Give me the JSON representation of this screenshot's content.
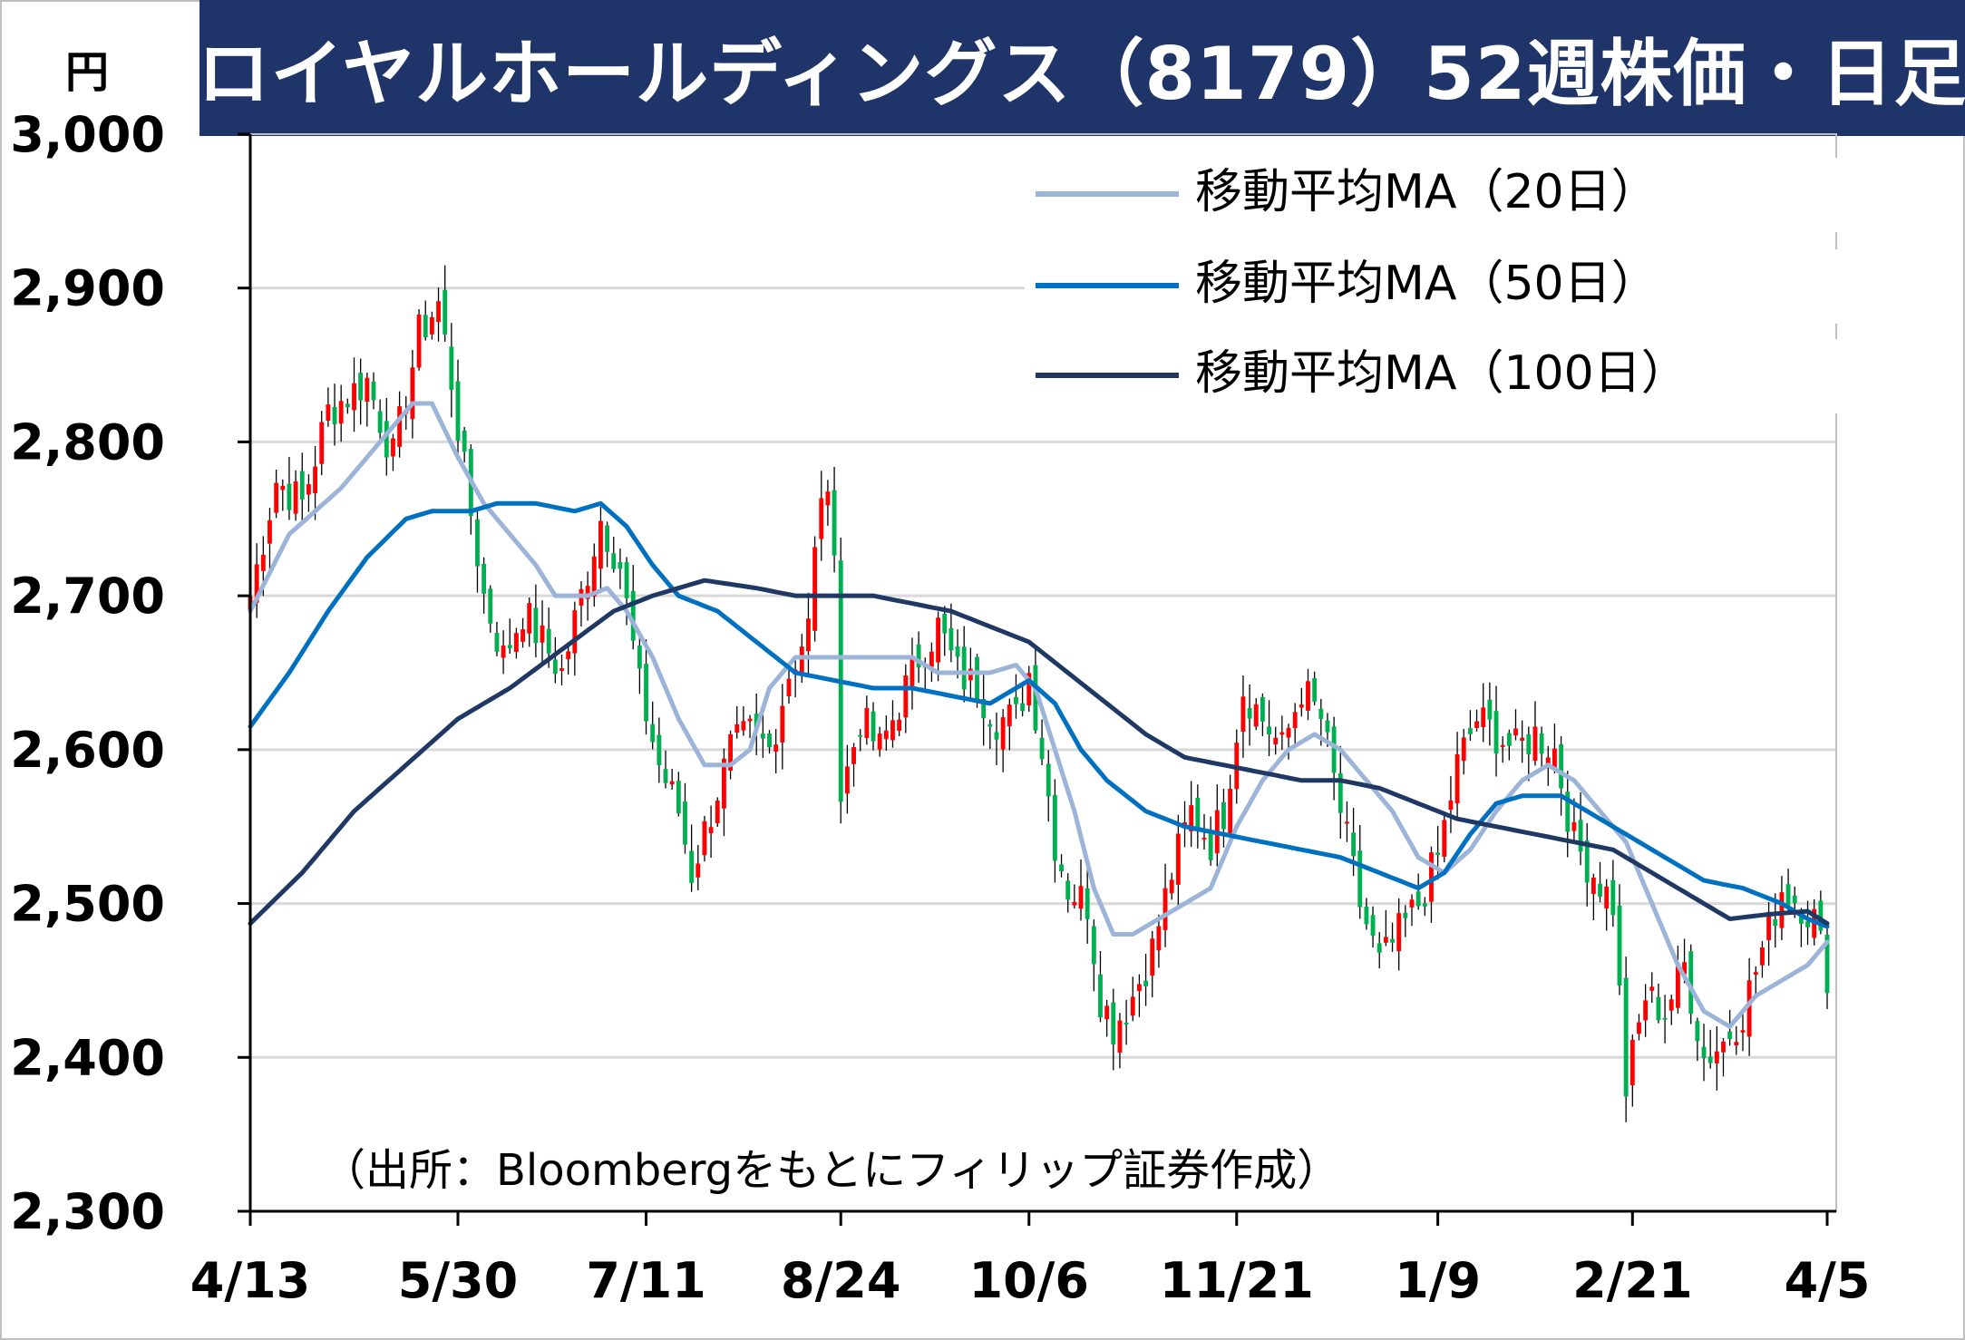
{
  "header": {
    "title": "ロイヤルホールディングス（8179）52週株価・日足",
    "unit": "円"
  },
  "source_note": "（出所：Bloombergをもとにフィリップ証券作成）",
  "colors": {
    "up": "#ff0000",
    "down": "#00b050",
    "wick": "#000000",
    "ma20": "#9cb4d8",
    "ma50": "#0070c0",
    "ma100": "#1f3864",
    "grid": "#d9d9d9",
    "title_bg": "#1f3468"
  },
  "chart_data": {
    "type": "candlestick",
    "title": "ロイヤルホールディングス（8179）52週株価・日足",
    "ylabel": "円",
    "ylim": [
      2300,
      3000
    ],
    "yticks": [
      "3,000",
      "2,900",
      "2,800",
      "2,700",
      "2,600",
      "2,500",
      "2,400",
      "2,300"
    ],
    "ytick_values": [
      3000,
      2900,
      2800,
      2700,
      2600,
      2500,
      2400,
      2300
    ],
    "xticks": [
      "4/13",
      "5/30",
      "7/11",
      "8/24",
      "10/6",
      "11/21",
      "1/9",
      "2/21",
      "4/5"
    ],
    "xtick_index": [
      0,
      32,
      61,
      91,
      120,
      152,
      183,
      213,
      243
    ],
    "n_days": 244,
    "grid": true,
    "legend_position": "top-right",
    "anchors": [
      [
        0,
        2700
      ],
      [
        4,
        2775
      ],
      [
        8,
        2760
      ],
      [
        12,
        2820
      ],
      [
        18,
        2840
      ],
      [
        22,
        2790
      ],
      [
        26,
        2870
      ],
      [
        29,
        2890
      ],
      [
        31,
        2840
      ],
      [
        33,
        2780
      ],
      [
        36,
        2700
      ],
      [
        39,
        2660
      ],
      [
        42,
        2690
      ],
      [
        45,
        2670
      ],
      [
        48,
        2650
      ],
      [
        51,
        2700
      ],
      [
        54,
        2750
      ],
      [
        57,
        2720
      ],
      [
        60,
        2640
      ],
      [
        63,
        2590
      ],
      [
        66,
        2560
      ],
      [
        68,
        2520
      ],
      [
        71,
        2560
      ],
      [
        74,
        2600
      ],
      [
        77,
        2610
      ],
      [
        80,
        2600
      ],
      [
        83,
        2650
      ],
      [
        86,
        2680
      ],
      [
        88,
        2770
      ],
      [
        90,
        2740
      ],
      [
        91,
        2570
      ],
      [
        94,
        2620
      ],
      [
        97,
        2600
      ],
      [
        100,
        2630
      ],
      [
        103,
        2660
      ],
      [
        106,
        2680
      ],
      [
        109,
        2650
      ],
      [
        112,
        2640
      ],
      [
        115,
        2620
      ],
      [
        118,
        2620
      ],
      [
        120,
        2650
      ],
      [
        122,
        2600
      ],
      [
        124,
        2540
      ],
      [
        126,
        2510
      ],
      [
        129,
        2500
      ],
      [
        131,
        2440
      ],
      [
        133,
        2420
      ],
      [
        136,
        2440
      ],
      [
        139,
        2470
      ],
      [
        142,
        2520
      ],
      [
        145,
        2560
      ],
      [
        148,
        2540
      ],
      [
        150,
        2560
      ],
      [
        153,
        2640
      ],
      [
        156,
        2620
      ],
      [
        159,
        2600
      ],
      [
        162,
        2640
      ],
      [
        165,
        2620
      ],
      [
        168,
        2560
      ],
      [
        171,
        2500
      ],
      [
        174,
        2460
      ],
      [
        177,
        2480
      ],
      [
        180,
        2500
      ],
      [
        183,
        2530
      ],
      [
        186,
        2590
      ],
      [
        189,
        2620
      ],
      [
        192,
        2610
      ],
      [
        195,
        2600
      ],
      [
        198,
        2610
      ],
      [
        201,
        2600
      ],
      [
        204,
        2540
      ],
      [
        207,
        2520
      ],
      [
        210,
        2500
      ],
      [
        212,
        2380
      ],
      [
        215,
        2440
      ],
      [
        218,
        2430
      ],
      [
        221,
        2460
      ],
      [
        224,
        2400
      ],
      [
        227,
        2410
      ],
      [
        230,
        2430
      ],
      [
        233,
        2470
      ],
      [
        236,
        2510
      ],
      [
        239,
        2500
      ],
      [
        241,
        2490
      ],
      [
        243,
        2455
      ]
    ],
    "series": [
      {
        "name": "移動平均MA（20日）",
        "values": [
          [
            0,
            2690
          ],
          [
            6,
            2740
          ],
          [
            14,
            2770
          ],
          [
            20,
            2800
          ],
          [
            25,
            2825
          ],
          [
            28,
            2825
          ],
          [
            32,
            2790
          ],
          [
            36,
            2760
          ],
          [
            40,
            2740
          ],
          [
            44,
            2720
          ],
          [
            47,
            2700
          ],
          [
            52,
            2700
          ],
          [
            55,
            2705
          ],
          [
            58,
            2690
          ],
          [
            62,
            2660
          ],
          [
            66,
            2620
          ],
          [
            70,
            2590
          ],
          [
            74,
            2590
          ],
          [
            77,
            2600
          ],
          [
            80,
            2640
          ],
          [
            84,
            2660
          ],
          [
            90,
            2660
          ],
          [
            94,
            2660
          ],
          [
            98,
            2660
          ],
          [
            102,
            2660
          ],
          [
            106,
            2650
          ],
          [
            110,
            2650
          ],
          [
            114,
            2650
          ],
          [
            118,
            2655
          ],
          [
            121,
            2640
          ],
          [
            124,
            2600
          ],
          [
            127,
            2560
          ],
          [
            130,
            2510
          ],
          [
            133,
            2480
          ],
          [
            136,
            2480
          ],
          [
            140,
            2490
          ],
          [
            144,
            2500
          ],
          [
            148,
            2510
          ],
          [
            152,
            2550
          ],
          [
            156,
            2580
          ],
          [
            160,
            2600
          ],
          [
            164,
            2610
          ],
          [
            168,
            2600
          ],
          [
            172,
            2580
          ],
          [
            176,
            2560
          ],
          [
            180,
            2530
          ],
          [
            184,
            2520
          ],
          [
            188,
            2535
          ],
          [
            192,
            2560
          ],
          [
            196,
            2580
          ],
          [
            200,
            2590
          ],
          [
            204,
            2580
          ],
          [
            208,
            2560
          ],
          [
            212,
            2540
          ],
          [
            216,
            2500
          ],
          [
            220,
            2460
          ],
          [
            224,
            2430
          ],
          [
            228,
            2420
          ],
          [
            232,
            2440
          ],
          [
            236,
            2450
          ],
          [
            240,
            2460
          ],
          [
            243,
            2475
          ]
        ]
      },
      {
        "name": "移動平均MA（50日）",
        "values": [
          [
            0,
            2615
          ],
          [
            6,
            2650
          ],
          [
            12,
            2690
          ],
          [
            18,
            2725
          ],
          [
            24,
            2750
          ],
          [
            28,
            2755
          ],
          [
            34,
            2755
          ],
          [
            38,
            2760
          ],
          [
            44,
            2760
          ],
          [
            50,
            2755
          ],
          [
            54,
            2760
          ],
          [
            58,
            2745
          ],
          [
            62,
            2720
          ],
          [
            66,
            2700
          ],
          [
            72,
            2690
          ],
          [
            78,
            2670
          ],
          [
            84,
            2650
          ],
          [
            90,
            2645
          ],
          [
            96,
            2640
          ],
          [
            102,
            2640
          ],
          [
            108,
            2635
          ],
          [
            114,
            2630
          ],
          [
            120,
            2645
          ],
          [
            124,
            2630
          ],
          [
            128,
            2600
          ],
          [
            132,
            2580
          ],
          [
            138,
            2560
          ],
          [
            144,
            2550
          ],
          [
            150,
            2545
          ],
          [
            156,
            2540
          ],
          [
            162,
            2535
          ],
          [
            168,
            2530
          ],
          [
            174,
            2520
          ],
          [
            180,
            2510
          ],
          [
            184,
            2520
          ],
          [
            188,
            2545
          ],
          [
            192,
            2565
          ],
          [
            196,
            2570
          ],
          [
            202,
            2570
          ],
          [
            208,
            2555
          ],
          [
            214,
            2540
          ],
          [
            218,
            2530
          ],
          [
            224,
            2515
          ],
          [
            230,
            2510
          ],
          [
            236,
            2500
          ],
          [
            240,
            2490
          ],
          [
            243,
            2485
          ]
        ]
      },
      {
        "name": "移動平均MA（100日）",
        "values": [
          [
            0,
            2487
          ],
          [
            8,
            2520
          ],
          [
            16,
            2560
          ],
          [
            24,
            2590
          ],
          [
            32,
            2620
          ],
          [
            40,
            2640
          ],
          [
            48,
            2665
          ],
          [
            56,
            2690
          ],
          [
            62,
            2700
          ],
          [
            70,
            2710
          ],
          [
            78,
            2705
          ],
          [
            84,
            2700
          ],
          [
            90,
            2700
          ],
          [
            96,
            2700
          ],
          [
            102,
            2695
          ],
          [
            108,
            2690
          ],
          [
            114,
            2680
          ],
          [
            120,
            2670
          ],
          [
            126,
            2650
          ],
          [
            132,
            2630
          ],
          [
            138,
            2610
          ],
          [
            144,
            2595
          ],
          [
            150,
            2590
          ],
          [
            156,
            2585
          ],
          [
            162,
            2580
          ],
          [
            168,
            2580
          ],
          [
            174,
            2575
          ],
          [
            180,
            2565
          ],
          [
            186,
            2555
          ],
          [
            192,
            2550
          ],
          [
            198,
            2545
          ],
          [
            204,
            2540
          ],
          [
            210,
            2535
          ],
          [
            216,
            2520
          ],
          [
            222,
            2505
          ],
          [
            228,
            2490
          ],
          [
            234,
            2493
          ],
          [
            240,
            2495
          ],
          [
            243,
            2487
          ]
        ]
      }
    ]
  }
}
